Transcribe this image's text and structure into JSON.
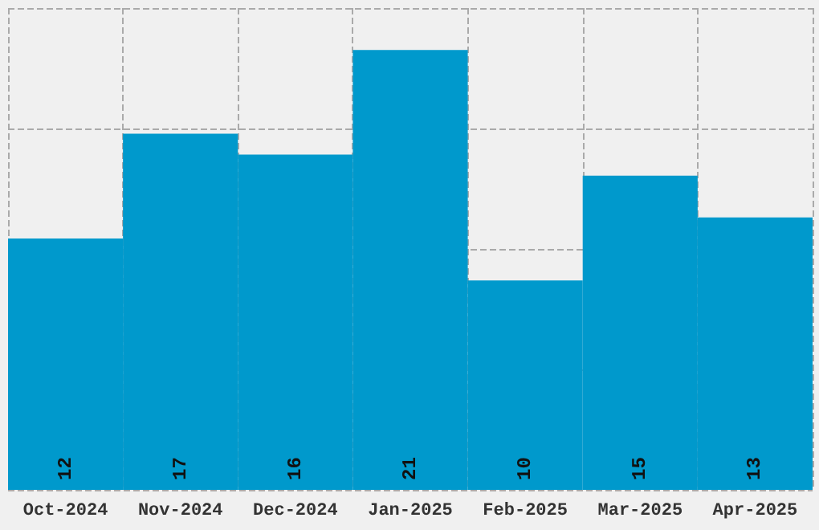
{
  "chart_data": {
    "type": "bar",
    "categories": [
      "Oct-2024",
      "Nov-2024",
      "Dec-2024",
      "Jan-2025",
      "Feb-2025",
      "Mar-2025",
      "Apr-2025"
    ],
    "values": [
      12,
      17,
      16,
      21,
      10,
      15,
      13
    ],
    "color": "#0099cc",
    "ylim": [
      0,
      23
    ],
    "grid": true,
    "data_labels": true,
    "tick_labels": "x"
  }
}
